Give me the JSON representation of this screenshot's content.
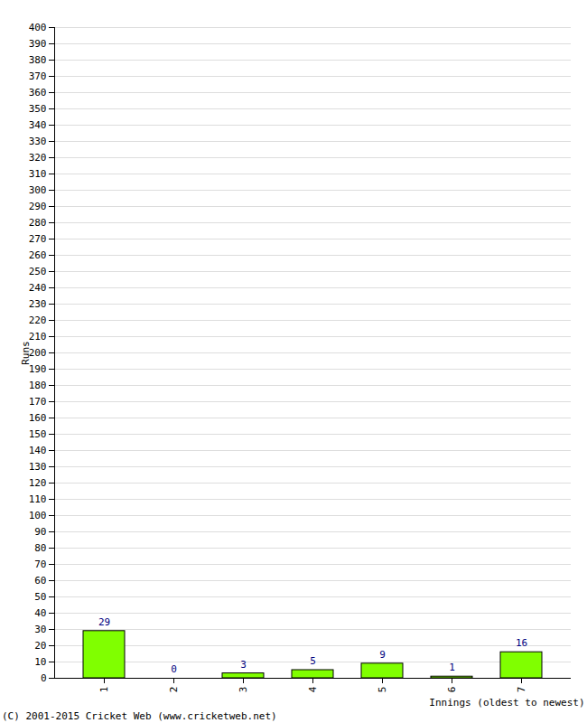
{
  "chart_data": {
    "type": "bar",
    "categories": [
      "1",
      "2",
      "3",
      "4",
      "5",
      "6",
      "7"
    ],
    "values": [
      29,
      0,
      3,
      5,
      9,
      1,
      16
    ],
    "color": "#80ff00",
    "x_label": "Innings (oldest to newest)",
    "y_label": "Runs",
    "caption": "(C) 2001-2015 Cricket Web (www.cricketweb.net)",
    "ylim": [
      0,
      400
    ],
    "yticks": [
      0,
      10,
      20,
      30,
      40,
      50,
      60,
      70,
      80,
      90,
      100,
      110,
      120,
      130,
      140,
      150,
      160,
      170,
      180,
      190,
      200,
      210,
      220,
      230,
      240,
      250,
      260,
      270,
      280,
      290,
      300,
      310,
      320,
      330,
      340,
      350,
      360,
      370,
      380,
      390,
      400
    ],
    "grid": true,
    "data_labels": true
  }
}
